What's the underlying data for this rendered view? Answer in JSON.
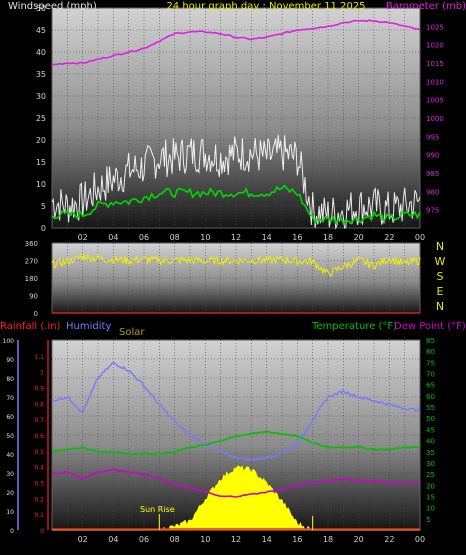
{
  "header": {
    "left": "Windspeed (mph)",
    "center": "24 hour graph day : November 11 2025",
    "right": "Barometer (mb)"
  },
  "colors": {
    "wind_gust": "#ffffff",
    "wind_avg": "#00d800",
    "barometer": "#e020e0",
    "direction": "#f0f000",
    "humidity": "#7878ff",
    "temperature": "#00c000",
    "dewpoint": "#d000d0",
    "solar": "#ffff00",
    "rainfall": "#ff2020",
    "header_yellow": "#e8e800",
    "label_gray": "#e0e0e0"
  },
  "bottom_labels": {
    "rainfall": "Rainfall (.in)",
    "humidity": "Humidity",
    "solar": "Solar",
    "temperature": "Temperature (°F)",
    "dewpoint": "Dew Point (°F)",
    "sunrise": "Sun Rise"
  },
  "compass": [
    "N",
    "W",
    "S",
    "E",
    "N"
  ],
  "x_ticks": [
    "02",
    "04",
    "06",
    "08",
    "10",
    "12",
    "14",
    "16",
    "18",
    "20",
    "22",
    "00"
  ],
  "chart_data": [
    {
      "type": "line",
      "title": "24 hour graph day : November 11 2025",
      "ylabel": "Windspeed (mph)",
      "y2label": "Barometer (mb)",
      "ylim": [
        0,
        50
      ],
      "y2lim": [
        970,
        1030
      ],
      "yticks": [
        0,
        5,
        10,
        15,
        20,
        25,
        30,
        35,
        40,
        45,
        50
      ],
      "y2ticks": [
        975,
        980,
        985,
        990,
        995,
        1000,
        1005,
        1010,
        1015,
        1020,
        1025
      ],
      "x": [
        0,
        1,
        2,
        3,
        4,
        5,
        6,
        7,
        8,
        9,
        10,
        11,
        12,
        13,
        14,
        15,
        16,
        17,
        18,
        19,
        20,
        21,
        22,
        23,
        24
      ],
      "grid": true,
      "series": [
        {
          "name": "Wind gust",
          "axis": "left",
          "values": [
            6,
            5,
            6,
            9,
            11,
            13,
            14,
            16,
            16,
            17,
            17,
            16,
            17,
            17,
            16,
            17,
            16,
            4,
            3,
            4,
            5,
            5,
            4,
            5,
            6
          ]
        },
        {
          "name": "Wind average",
          "axis": "left",
          "values": [
            3,
            3,
            3,
            5,
            6,
            6,
            7,
            8,
            8,
            8,
            8,
            8,
            8,
            8,
            8,
            9,
            8,
            2,
            2,
            2,
            2,
            3,
            2,
            3,
            3
          ]
        },
        {
          "name": "Barometer",
          "axis": "right",
          "values": [
            1014.5,
            1015,
            1015,
            1016,
            1017,
            1018,
            1019,
            1021,
            1023,
            1023.5,
            1023.5,
            1023,
            1022,
            1021.5,
            1022,
            1023,
            1024,
            1024.5,
            1025,
            1026,
            1026.5,
            1026.5,
            1026,
            1025,
            1024
          ]
        }
      ]
    },
    {
      "type": "line",
      "ylabel": "Wind direction",
      "ylim": [
        0,
        360
      ],
      "yticks": [
        0,
        90,
        180,
        270,
        360
      ],
      "x": [
        0,
        1,
        2,
        3,
        4,
        5,
        6,
        7,
        8,
        9,
        10,
        11,
        12,
        13,
        14,
        15,
        16,
        17,
        18,
        19,
        20,
        21,
        22,
        23,
        24
      ],
      "grid": true,
      "series": [
        {
          "name": "Wind direction",
          "values": [
            250,
            265,
            290,
            280,
            275,
            270,
            275,
            270,
            270,
            272,
            268,
            270,
            270,
            272,
            270,
            275,
            268,
            265,
            200,
            240,
            270,
            245,
            280,
            255,
            270
          ]
        }
      ]
    },
    {
      "type": "line",
      "ylabel": "Humidity",
      "ylim": [
        0,
        100
      ],
      "yticks": [
        0,
        10,
        20,
        30,
        40,
        50,
        60,
        70,
        80,
        90,
        100
      ],
      "y2lim": [
        0,
        85
      ],
      "y2ticks": [
        5,
        10,
        15,
        20,
        25,
        30,
        35,
        40,
        45,
        50,
        55,
        60,
        65,
        70,
        75,
        80,
        85
      ],
      "y3lim": [
        0,
        1.2
      ],
      "y3ticks": [
        0,
        0.1,
        0.2,
        0.3,
        0.4,
        0.5,
        0.6,
        0.7,
        0.8,
        0.9,
        1,
        1.1
      ],
      "x": [
        0,
        1,
        2,
        3,
        4,
        5,
        6,
        7,
        8,
        9,
        10,
        11,
        12,
        13,
        14,
        15,
        16,
        17,
        18,
        19,
        20,
        21,
        22,
        23,
        24
      ],
      "grid": true,
      "series": [
        {
          "name": "Humidity",
          "axis": "left",
          "values": [
            68,
            70,
            62,
            80,
            88,
            84,
            76,
            66,
            57,
            50,
            45,
            41,
            38,
            37,
            38,
            41,
            45,
            58,
            70,
            73,
            70,
            68,
            66,
            64,
            63
          ]
        },
        {
          "name": "Temperature",
          "axis": "right",
          "values": [
            35,
            36,
            37,
            35,
            35,
            34,
            34,
            34,
            35,
            37,
            38,
            40,
            42,
            43,
            44,
            43,
            42,
            39,
            37,
            37,
            37,
            36,
            36,
            37,
            37
          ]
        },
        {
          "name": "Dew Point",
          "axis": "right",
          "values": [
            25,
            26,
            23,
            26,
            27,
            26,
            25,
            23,
            20,
            19,
            17,
            15,
            15,
            16,
            17,
            18,
            20,
            21,
            22,
            23,
            22,
            22,
            21,
            21,
            21
          ]
        },
        {
          "name": "Solar",
          "axis": "right",
          "values": [
            0,
            0,
            0,
            0,
            0,
            0,
            0,
            0.3,
            1.5,
            4,
            14,
            23,
            28,
            27,
            21,
            13,
            3,
            0,
            0,
            0,
            0,
            0,
            0,
            0,
            0
          ]
        },
        {
          "name": "Rainfall",
          "axis": "rain",
          "values": [
            0,
            0,
            0,
            0,
            0,
            0,
            0,
            0,
            0,
            0,
            0,
            0,
            0,
            0,
            0,
            0,
            0,
            0,
            0,
            0,
            0,
            0,
            0,
            0,
            0
          ]
        }
      ]
    }
  ]
}
